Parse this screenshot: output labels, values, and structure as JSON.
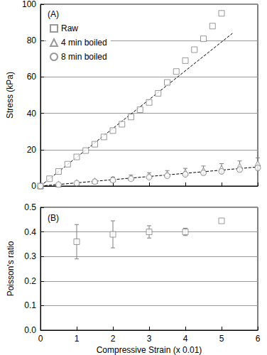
{
  "chart_data": [
    {
      "type": "scatter",
      "annotation": "(A)",
      "y_label": "Stress (kPa)",
      "xlim": [
        0,
        6
      ],
      "xticks": [
        0,
        1,
        2,
        3,
        4,
        5,
        6
      ],
      "ylim": [
        0,
        100
      ],
      "yticks": [
        0,
        20,
        40,
        60,
        80,
        100
      ],
      "grid": true,
      "legend": "upper left",
      "tick_labels": "y",
      "series": [
        {
          "name": "Raw",
          "marker": "square",
          "color": "#7f7f7f",
          "x": [
            0,
            0.25,
            0.5,
            0.75,
            1,
            1.25,
            1.5,
            1.75,
            2,
            2.25,
            2.5,
            2.75,
            3,
            3.25,
            3.5,
            3.75,
            4,
            4.25,
            4.5,
            4.75,
            5
          ],
          "values": [
            0,
            4,
            8,
            12,
            16,
            19.5,
            23,
            27,
            30.5,
            34,
            38,
            42,
            46,
            51,
            57,
            63,
            69,
            75,
            81,
            88,
            95
          ]
        },
        {
          "name": "4 min boiled",
          "marker": "triangle",
          "color": "#7f7f7f",
          "x": [
            0,
            0.5,
            1,
            1.5,
            2,
            2.5,
            3,
            3.5,
            4,
            4.5,
            5,
            5.5,
            6
          ],
          "values": [
            0,
            1,
            2,
            2.9,
            3.9,
            4.8,
            5.8,
            6.7,
            7.7,
            8.7,
            9.8,
            11,
            12.5
          ],
          "errors": [
            0,
            0.3,
            0.5,
            0.7,
            1,
            1.2,
            1.5,
            1.8,
            2,
            2.3,
            2.5,
            2.8,
            3
          ]
        },
        {
          "name": "8 min boiled",
          "marker": "circle",
          "color": "#7f7f7f",
          "x": [
            0,
            0.5,
            1,
            1.5,
            2,
            2.5,
            3,
            3.5,
            4,
            4.5,
            5,
            5.5,
            6
          ],
          "values": [
            0,
            0.8,
            1.6,
            2.4,
            3.2,
            4,
            4.8,
            5.6,
            6.4,
            7.2,
            8,
            9,
            10
          ],
          "errors": [
            0,
            0.2,
            0.3,
            0.4,
            0.5,
            0.6,
            0.7,
            0.8,
            0.9,
            1,
            1.1,
            1.2,
            1.3
          ]
        },
        {
          "type": "line",
          "line_style": "dashed",
          "color": "#000000",
          "x": [
            0,
            5.3
          ],
          "values": [
            0,
            84
          ]
        },
        {
          "type": "line",
          "line_style": "dashed",
          "color": "#000000",
          "x": [
            0,
            6
          ],
          "values": [
            0,
            10.5
          ]
        }
      ]
    },
    {
      "type": "scatter",
      "annotation": "(B)",
      "x_label": "Compressive Strain (x 0.01)",
      "y_label": "Poisson's ratio",
      "xlim": [
        0,
        6
      ],
      "xticks": [
        0,
        1,
        2,
        3,
        4,
        5,
        6
      ],
      "ylim": [
        0,
        0.5
      ],
      "yticks": [
        {
          "value": 0,
          "label": "0.0"
        },
        0.1,
        0.2,
        0.3,
        0.4,
        0.5
      ],
      "grid": true,
      "series": [
        {
          "marker": "square",
          "color": "#7f7f7f",
          "x": [
            1,
            2,
            3,
            4,
            5
          ],
          "values": [
            0.36,
            0.39,
            0.4,
            0.4,
            0.445
          ],
          "errors": [
            0.07,
            0.055,
            0.025,
            0.015,
            null
          ]
        }
      ]
    }
  ]
}
